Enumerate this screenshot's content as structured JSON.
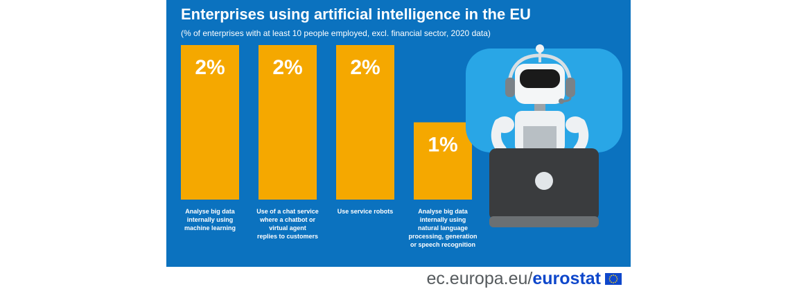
{
  "header": {
    "title": "Enterprises using artificial intelligence in the EU",
    "subtitle": "(% of enterprises with at least 10 people employed, excl. financial sector, 2020 data)"
  },
  "chart_data": {
    "type": "bar",
    "title": "Enterprises using artificial intelligence in the EU",
    "subtitle": "(% of enterprises with at least 10 people employed, excl. financial sector, 2020 data)",
    "categories": [
      [
        "Analyse big data",
        "internally using",
        "machine learning"
      ],
      [
        "Use of a chat service",
        "where  a chatbot or",
        "virtual agent",
        "replies to customers"
      ],
      [
        "Use service robots"
      ],
      [
        "Analyse big data",
        "internally using",
        "natural language",
        "processing, generation",
        "or speech recognition"
      ]
    ],
    "values": [
      2,
      2,
      2,
      1
    ],
    "value_labels": [
      "2%",
      "2%",
      "2%",
      "1%"
    ],
    "ylim": [
      0,
      2
    ],
    "grid": false,
    "bar_color": "#f5a800"
  },
  "footer": {
    "site": "ec.europa.eu/",
    "brand": "eurostat"
  },
  "colors": {
    "panel": "#0b72bf",
    "bar": "#f5a800",
    "robot_bg": "#29a6e6",
    "brand": "#0e47cb"
  },
  "icons": {
    "robot": "robot-with-headset-and-laptop-icon",
    "flag": "eu-flag-icon"
  }
}
